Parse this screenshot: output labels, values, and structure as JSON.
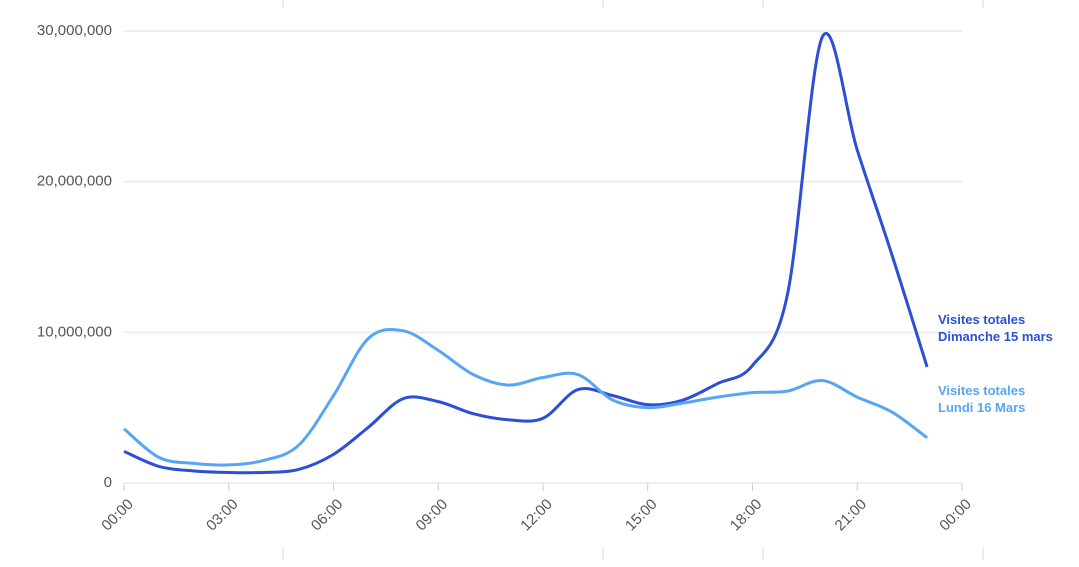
{
  "chart_data": {
    "type": "line",
    "x": [
      0,
      1,
      2,
      3,
      4,
      5,
      6,
      7,
      8,
      9,
      10,
      11,
      12,
      13,
      14,
      15,
      16,
      17,
      18,
      19,
      20,
      21,
      22,
      23
    ],
    "series": [
      {
        "name": "Visites totales Dimanche 15 mars",
        "color": "#2b4fd6",
        "values": [
          2100000,
          1100000,
          800000,
          700000,
          700000,
          900000,
          1900000,
          3700000,
          5600000,
          5400000,
          4600000,
          4200000,
          4300000,
          6200000,
          5800000,
          5200000,
          5500000,
          6600000,
          7800000,
          12500000,
          29600000,
          22100000,
          15100000,
          7700000
        ]
      },
      {
        "name": "Visites totales Lundi 16 Mars",
        "color": "#58a6f3",
        "values": [
          3600000,
          1700000,
          1300000,
          1200000,
          1500000,
          2500000,
          5800000,
          9600000,
          10100000,
          8800000,
          7200000,
          6500000,
          7000000,
          7200000,
          5500000,
          5000000,
          5300000,
          5700000,
          6000000,
          6100000,
          6800000,
          5700000,
          4700000,
          3000000
        ]
      }
    ],
    "xlim": [
      0,
      24
    ],
    "xticks": [
      {
        "value": 0,
        "label": "00:00"
      },
      {
        "value": 3,
        "label": "03:00"
      },
      {
        "value": 6,
        "label": "06:00"
      },
      {
        "value": 9,
        "label": "09:00"
      },
      {
        "value": 12,
        "label": "12:00"
      },
      {
        "value": 15,
        "label": "15:00"
      },
      {
        "value": 18,
        "label": "18:00"
      },
      {
        "value": 21,
        "label": "21:00"
      },
      {
        "value": 24,
        "label": "00:00"
      }
    ],
    "ylim": [
      0,
      30000000
    ],
    "yticks": [
      0,
      {
        "value": 10000000,
        "label": "10,000,000"
      },
      {
        "value": 20000000,
        "label": "20,000,000"
      },
      {
        "value": 30000000,
        "label": "30,000,000"
      }
    ],
    "grid": true
  }
}
